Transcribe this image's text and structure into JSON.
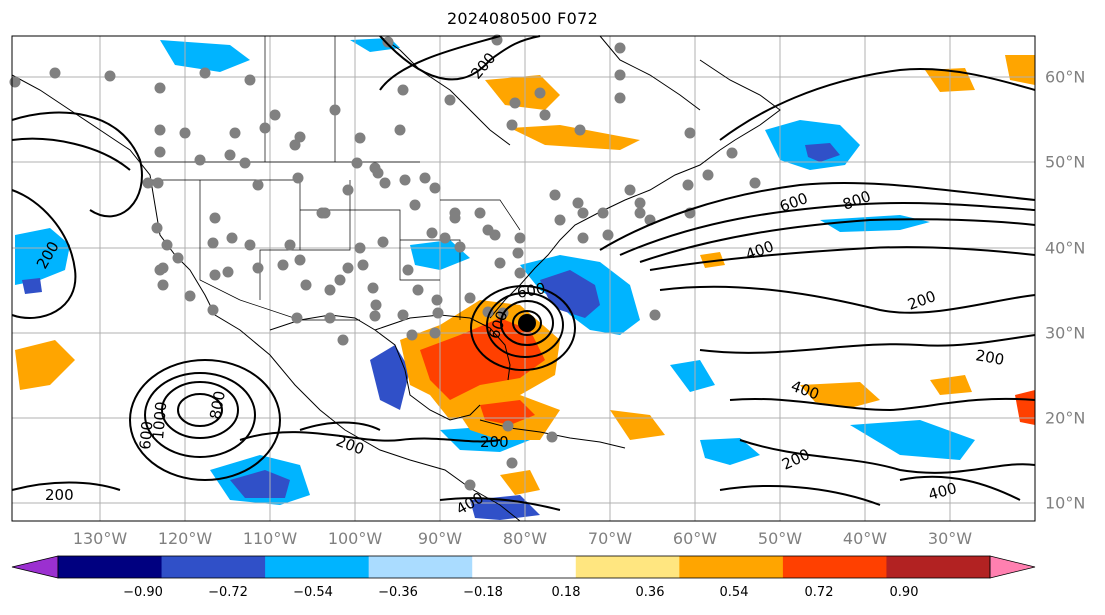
{
  "title": "2024080500 F072",
  "map": {
    "projection": "cylindrical",
    "lon_range": [
      -140,
      -19
    ],
    "lat_range": [
      7,
      65
    ],
    "lon_ticks": [
      "130°W",
      "120°W",
      "110°W",
      "100°W",
      "90°W",
      "80°W",
      "70°W",
      "60°W",
      "50°W",
      "40°W",
      "30°W"
    ],
    "lat_ticks": [
      "60°N",
      "50°N",
      "40°N",
      "30°N",
      "20°N",
      "10°N"
    ],
    "grid": true,
    "contour_labels": [
      "200",
      "200",
      "200",
      "200",
      "200",
      "200",
      "200",
      "200",
      "400",
      "400",
      "400",
      "600",
      "600",
      "600",
      "800",
      "800",
      "600",
      "1000",
      "400"
    ],
    "storm_center": "black-dot",
    "station_markers": "gray-dots",
    "colors": {
      "contour": "#000000",
      "station": "#808080",
      "grid": "#b0b0b0"
    }
  },
  "colorbar": {
    "ticks": [
      "−0.90",
      "−0.72",
      "−0.54",
      "−0.36",
      "−0.18",
      "0.18",
      "0.36",
      "0.54",
      "0.72",
      "0.90"
    ],
    "colors": [
      "#9b30d0",
      "#000080",
      "#3050c8",
      "#00b4ff",
      "#aadcff",
      "#ffffff",
      "#ffe680",
      "#ffa500",
      "#ff4000",
      "#b22222",
      "#ff80b0"
    ],
    "extend": "both"
  }
}
